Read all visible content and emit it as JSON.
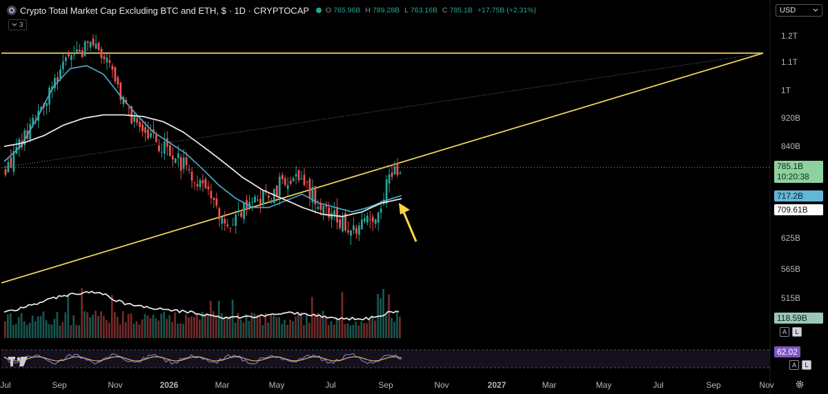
{
  "header": {
    "title": "Crypto Total Market Cap Excluding BTC and ETH, $ · 1D · CRYPTOCAP",
    "ohlc": [
      {
        "label": "O",
        "value": "765.96B"
      },
      {
        "label": "H",
        "value": "789.28B"
      },
      {
        "label": "L",
        "value": "763.16B"
      },
      {
        "label": "C",
        "value": "785.1B"
      },
      {
        "label": "",
        "value": "+17.75B (+2.31%)"
      }
    ],
    "indicators_count": "3"
  },
  "currency": "USD",
  "price_tags": {
    "last": "785.1B",
    "countdown": "10:20:38",
    "ma_fast": "717.2B",
    "ma_slow": "709.61B",
    "volume": "118.59B",
    "rsi": "62.02"
  },
  "scale_buttons": {
    "auto": "A",
    "log": "L"
  },
  "colors": {
    "bull": "#26a69a",
    "bear": "#ef5350",
    "trendline": "#f2d45c",
    "ma_fast": "#4aa3c2",
    "ma_slow": "#e8e8e8",
    "last_tag": "#8fd19e",
    "ma_fast_tag": "#62b6d6",
    "rsi_tag": "#7e57c2",
    "arrow": "#f5d547"
  },
  "chart_data": {
    "type": "candlestick",
    "series": [
      {
        "name": "Crypto Total Market Cap Excluding BTC and ETH",
        "kind": "candles",
        "anchor_closes_B": [
          790,
          820,
          870,
          930,
          990,
          1050,
          1090,
          1130,
          1150,
          1160,
          1100,
          1010,
          940,
          900,
          880,
          850,
          830,
          800,
          780,
          760,
          720,
          680,
          660,
          670,
          690,
          700,
          720,
          740,
          760,
          750,
          730,
          700,
          680,
          660,
          650,
          655,
          660,
          700,
          770,
          785
        ]
      },
      {
        "name": "",
        "kind": "moving-average",
        "color": "ma_fast",
        "anchor_values_B": [
          800,
          840,
          920,
          1020,
          1080,
          1090,
          1060,
          990,
          930,
          880,
          850,
          820,
          780,
          740,
          710,
          690,
          690,
          705,
          720,
          700,
          690,
          680,
          690,
          705,
          717
        ]
      },
      {
        "name": "",
        "kind": "moving-average",
        "color": "ma_slow",
        "anchor_values_B": [
          840,
          850,
          870,
          900,
          920,
          930,
          930,
          925,
          910,
          880,
          840,
          800,
          760,
          730,
          710,
          690,
          675,
          670,
          680,
          700,
          709.6
        ]
      }
    ],
    "y_ticks": [
      "1.2T",
      "1.1T",
      "1T",
      "920B",
      "840B",
      "625B",
      "565B",
      "515B"
    ],
    "x_ticks": [
      "Jul",
      "Sep",
      "Nov",
      "2026",
      "Mar",
      "May",
      "Jul",
      "Sep",
      "Nov",
      "2027",
      "Mar",
      "May",
      "Jul",
      "Sep",
      "Nov"
    ],
    "scale": "log",
    "grid": false,
    "lines": [
      "horizontal resistance",
      "rising support",
      "dotted upper trend",
      "dotted last-price line"
    ],
    "panes": [
      "price",
      "volume",
      "rsi"
    ],
    "last_value_B": 785.1
  }
}
